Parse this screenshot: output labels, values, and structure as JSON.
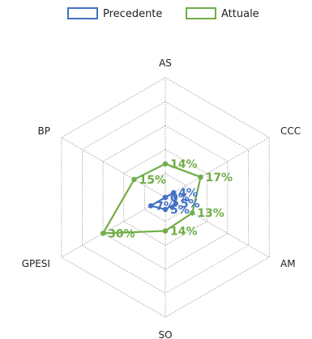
{
  "chart_data": {
    "type": "radar",
    "axes": [
      "AS",
      "CCC",
      "AM",
      "SO",
      "GPESI",
      "BP"
    ],
    "rmax": 50,
    "ring_count": 5,
    "grid": true,
    "grid_style": "dotted",
    "legend_position": "top-center",
    "series": [
      {
        "name": "Precedente",
        "color": "#4472C4",
        "values": [
          0,
          4,
          5,
          5,
          7,
          0
        ],
        "labels": [
          "0%",
          "4%",
          "5%",
          "5%",
          "7%",
          "0%"
        ]
      },
      {
        "name": "Attuale",
        "color": "#70AD47",
        "values": [
          14,
          17,
          13,
          14,
          30,
          15
        ],
        "labels": [
          "14%",
          "17%",
          "13%",
          "14%",
          "30%",
          "15%"
        ]
      }
    ]
  }
}
